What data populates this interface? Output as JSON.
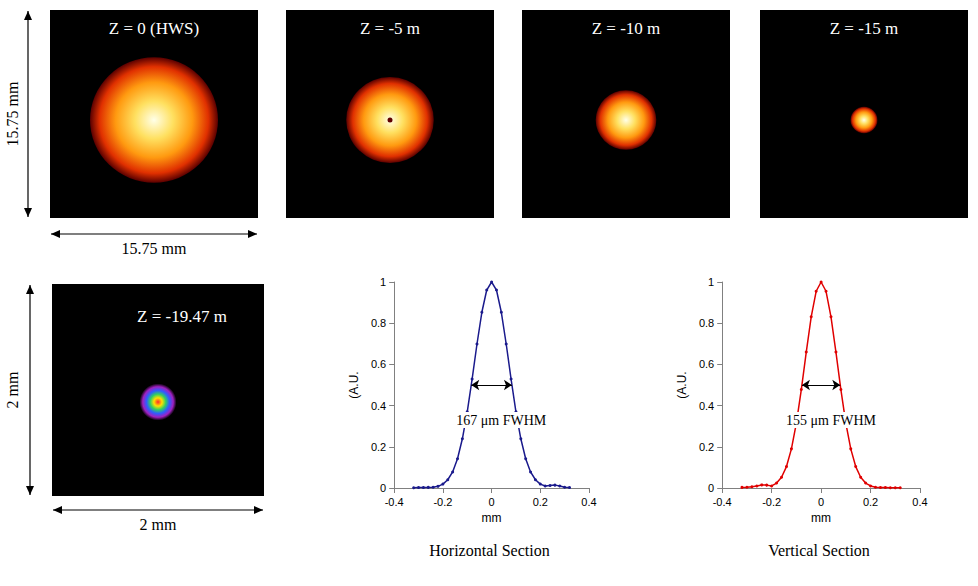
{
  "panels": [
    {
      "label": "Z = 0 (HWS)",
      "spot_diameter_mm": 9.5
    },
    {
      "label": "Z = -5 m",
      "spot_diameter_mm": 6.5
    },
    {
      "label": "Z = -10 m",
      "spot_diameter_mm": 4.5
    },
    {
      "label": "Z = -15 m",
      "spot_diameter_mm": 2
    }
  ],
  "field_size": {
    "value": 15.75,
    "label": "15.75 mm"
  },
  "focus_panel": {
    "label": "Z = -19.47 m",
    "field_size": {
      "value": 2,
      "label": "2 mm"
    },
    "spot_diameter_mm": 0.35
  },
  "chart_data": [
    {
      "type": "line",
      "title": "Horizontal Section",
      "color": "#1a1a8c",
      "marker": "circle",
      "x": [
        -0.32,
        -0.3,
        -0.28,
        -0.26,
        -0.24,
        -0.22,
        -0.2,
        -0.18,
        -0.16,
        -0.14,
        -0.12,
        -0.1,
        -0.08,
        -0.06,
        -0.04,
        -0.02,
        0,
        0.02,
        0.04,
        0.06,
        0.08,
        0.1,
        0.12,
        0.14,
        0.16,
        0.18,
        0.2,
        0.22,
        0.24,
        0.26,
        0.28,
        0.3,
        0.32
      ],
      "values": [
        0.001,
        0.002,
        0.002,
        0.003,
        0.004,
        0.008,
        0.019,
        0.04,
        0.078,
        0.142,
        0.239,
        0.37,
        0.529,
        0.699,
        0.853,
        0.961,
        1,
        0.961,
        0.853,
        0.699,
        0.529,
        0.37,
        0.239,
        0.142,
        0.078,
        0.04,
        0.019,
        0.01,
        0.012,
        0.014,
        0.01,
        0.004,
        0.002
      ],
      "xlim": [
        -0.4,
        0.4
      ],
      "xticks": [
        -0.4,
        -0.2,
        0,
        0.2,
        0.4
      ],
      "ylim": [
        0,
        1
      ],
      "yticks": [
        0,
        0.2,
        0.4,
        0.6,
        0.8,
        1
      ],
      "xlabel": "mm",
      "ylabel": "(A.U.",
      "grid": false,
      "annotations": [
        {
          "text": "167 μm FWHM",
          "x": 0.04,
          "y": 0.33
        }
      ],
      "fwhm_arrow": {
        "x": [
          -0.0835,
          0.0835
        ],
        "y": 0.5
      }
    },
    {
      "type": "line",
      "title": "Vertical Section",
      "color": "#e00000",
      "marker": "circle",
      "x": [
        -0.32,
        -0.3,
        -0.28,
        -0.26,
        -0.24,
        -0.22,
        -0.2,
        -0.18,
        -0.16,
        -0.14,
        -0.12,
        -0.1,
        -0.08,
        -0.06,
        -0.04,
        -0.02,
        0,
        0.02,
        0.04,
        0.06,
        0.08,
        0.1,
        0.12,
        0.14,
        0.16,
        0.18,
        0.2,
        0.22,
        0.24,
        0.26,
        0.28,
        0.3,
        0.32
      ],
      "values": [
        0.003,
        0.004,
        0.006,
        0.01,
        0.015,
        0.014,
        0.01,
        0.024,
        0.052,
        0.104,
        0.19,
        0.315,
        0.478,
        0.66,
        0.831,
        0.955,
        1,
        0.955,
        0.831,
        0.66,
        0.478,
        0.315,
        0.19,
        0.104,
        0.052,
        0.024,
        0.01,
        0.004,
        0.002,
        0.002,
        0.001,
        0.001,
        0.001
      ],
      "xlim": [
        -0.4,
        0.4
      ],
      "xticks": [
        -0.4,
        -0.2,
        0,
        0.2,
        0.4
      ],
      "ylim": [
        0,
        1
      ],
      "yticks": [
        0,
        0.2,
        0.4,
        0.6,
        0.8,
        1
      ],
      "xlabel": "mm",
      "ylabel": "(A.U.",
      "grid": false,
      "annotations": [
        {
          "text": "155 μm FWHM",
          "x": 0.04,
          "y": 0.33
        }
      ],
      "fwhm_arrow": {
        "x": [
          -0.0775,
          0.0775
        ],
        "y": 0.5
      }
    }
  ]
}
